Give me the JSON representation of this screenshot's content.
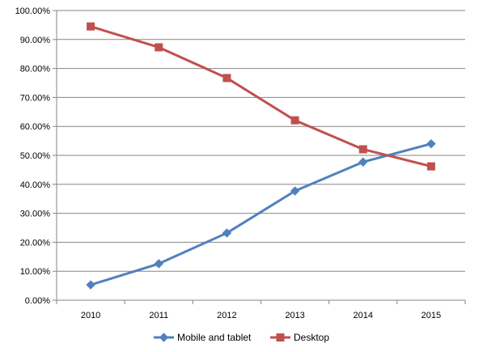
{
  "chart_data": {
    "type": "line",
    "categories": [
      "2010",
      "2011",
      "2012",
      "2013",
      "2014",
      "2015"
    ],
    "series": [
      {
        "name": "Mobile and tablet",
        "values": [
          5.3,
          12.6,
          23.2,
          37.7,
          47.7,
          54.0
        ],
        "color": "#4f81bd",
        "marker": "diamond"
      },
      {
        "name": "Desktop",
        "values": [
          94.5,
          87.3,
          76.7,
          62.1,
          52.1,
          46.2
        ],
        "color": "#c0504d",
        "marker": "square"
      }
    ],
    "y_ticks": [
      "0.00%",
      "10.00%",
      "20.00%",
      "30.00%",
      "40.00%",
      "50.00%",
      "60.00%",
      "70.00%",
      "80.00%",
      "90.00%",
      "100.00%"
    ],
    "ylim": [
      0,
      100
    ],
    "y_unit": "percent",
    "grid": true,
    "legend_position": "bottom"
  }
}
